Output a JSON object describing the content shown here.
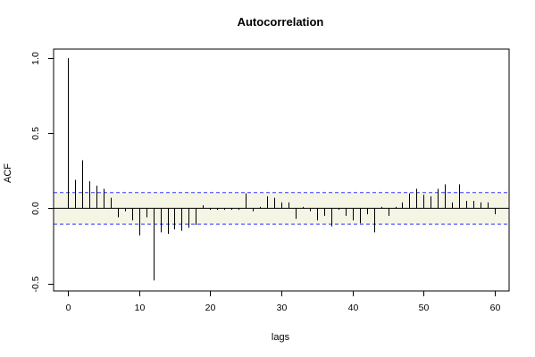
{
  "chart_data": {
    "type": "bar",
    "title": "Autocorrelation",
    "xlabel": "lags",
    "ylabel": "ACF",
    "xlim": [
      -2,
      62
    ],
    "ylim": [
      -0.55,
      1.06
    ],
    "x_ticks": [
      0,
      10,
      20,
      30,
      40,
      50,
      60
    ],
    "y_ticks": [
      -0.5,
      0.0,
      0.5,
      1.0
    ],
    "x_tick_labels": [
      "0",
      "10",
      "20",
      "30",
      "40",
      "50",
      "60"
    ],
    "y_tick_labels": [
      "-0.5",
      "0.0",
      "0.5",
      "1.0"
    ],
    "confidence_band": 0.105,
    "colors": {
      "bars": "#000000",
      "band": "#3333ff",
      "zero": "#000000",
      "band_fill": "#f5f5e6"
    },
    "lags": [
      0,
      1,
      2,
      3,
      4,
      5,
      6,
      7,
      8,
      9,
      10,
      11,
      12,
      13,
      14,
      15,
      16,
      17,
      18,
      19,
      20,
      21,
      22,
      23,
      24,
      25,
      26,
      27,
      28,
      29,
      30,
      31,
      32,
      33,
      34,
      35,
      36,
      37,
      38,
      39,
      40,
      41,
      42,
      43,
      44,
      45,
      46,
      47,
      48,
      49,
      50,
      51,
      52,
      53,
      54,
      55,
      56,
      57,
      58,
      59,
      60
    ],
    "values": [
      1.0,
      0.19,
      0.32,
      0.18,
      0.15,
      0.13,
      0.07,
      -0.06,
      -0.02,
      -0.08,
      -0.18,
      -0.06,
      -0.48,
      -0.16,
      -0.17,
      -0.14,
      -0.15,
      -0.13,
      -0.11,
      0.02,
      -0.01,
      -0.01,
      -0.01,
      -0.01,
      -0.01,
      0.1,
      -0.02,
      0.01,
      0.08,
      0.07,
      0.04,
      0.04,
      -0.07,
      0.01,
      -0.02,
      -0.08,
      -0.05,
      -0.12,
      -0.01,
      -0.05,
      -0.08,
      -0.1,
      -0.04,
      -0.16,
      0.01,
      -0.05,
      0.01,
      0.04,
      0.1,
      0.13,
      0.09,
      0.08,
      0.13,
      0.16,
      0.04,
      0.16,
      0.05,
      0.05,
      0.04,
      0.04,
      -0.04
    ]
  }
}
